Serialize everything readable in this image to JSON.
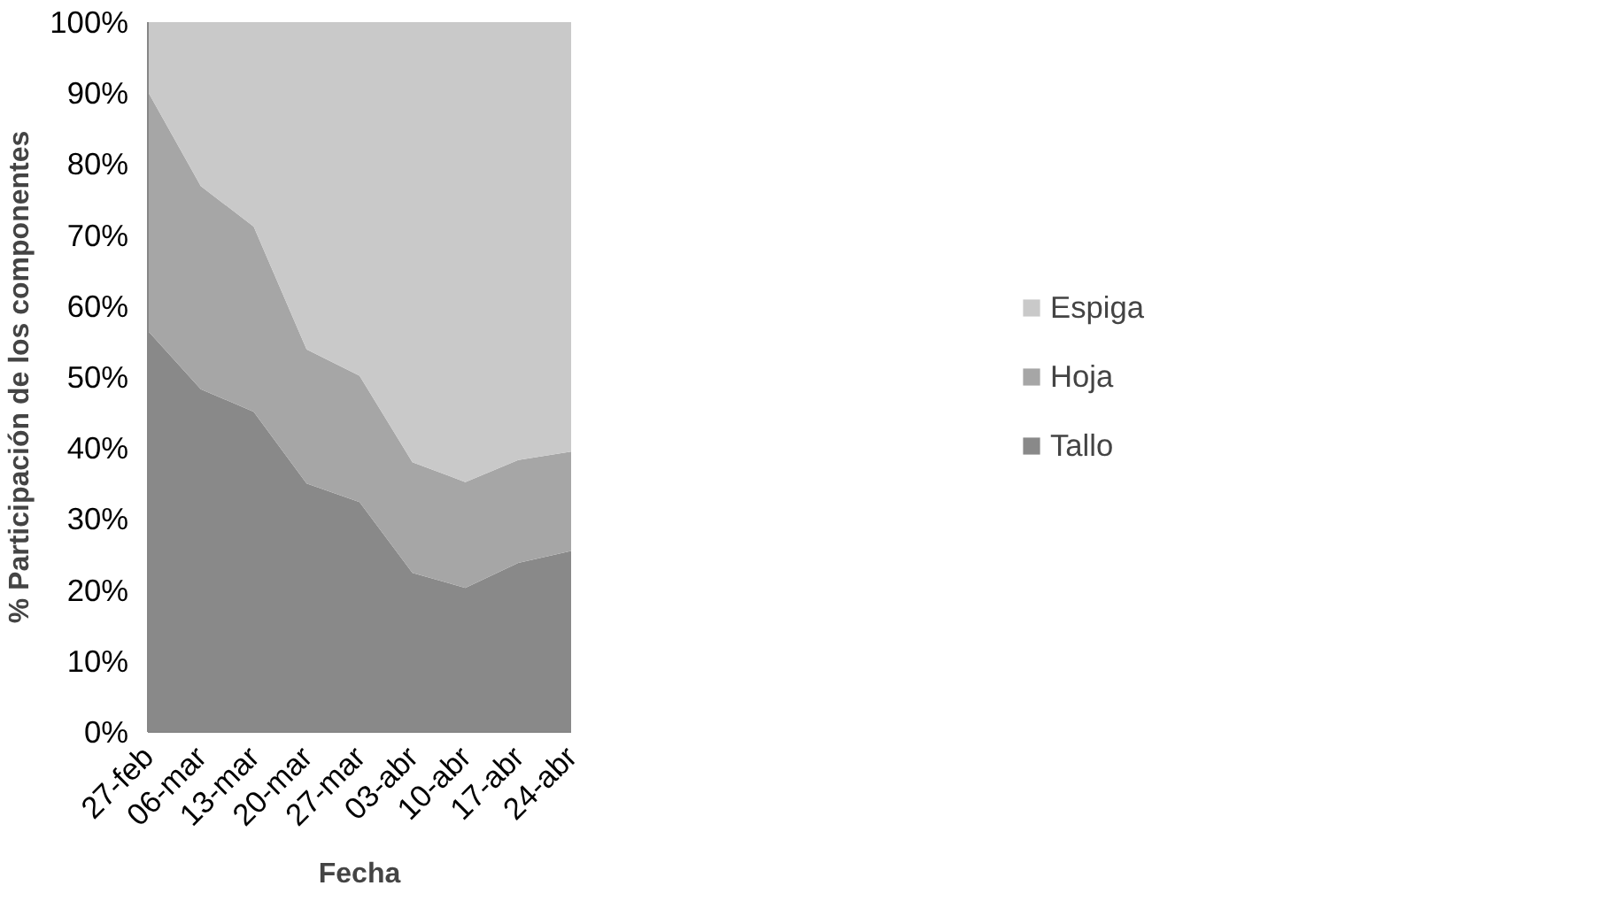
{
  "chart_data": {
    "type": "area",
    "stacked": true,
    "xlabel": "Fecha",
    "ylabel": "% Participación de los componentes",
    "categories": [
      "27-feb",
      "06-mar",
      "13-mar",
      "20-mar",
      "27-mar",
      "03-abr",
      "10-abr",
      "17-abr",
      "24-abr"
    ],
    "series": [
      {
        "name": "Tallo",
        "color": "#898989",
        "values": [
          56.5,
          48.3,
          45.1,
          35.0,
          32.4,
          22.4,
          20.3,
          23.8,
          25.5
        ]
      },
      {
        "name": "Hoja",
        "color": "#a6a6a6",
        "values": [
          33.7,
          28.6,
          26.1,
          18.9,
          17.8,
          15.6,
          14.9,
          14.5,
          14.0
        ]
      },
      {
        "name": "Espiga",
        "color": "#c9c9c9",
        "values": [
          9.8,
          23.1,
          28.8,
          46.1,
          49.8,
          62.0,
          64.8,
          61.7,
          60.5
        ]
      }
    ],
    "ylim": [
      0,
      100
    ],
    "yticks": [
      {
        "value": 0,
        "label": "0%"
      },
      {
        "value": 10,
        "label": "10%"
      },
      {
        "value": 20,
        "label": "20%"
      },
      {
        "value": 30,
        "label": "30%"
      },
      {
        "value": 40,
        "label": "40%"
      },
      {
        "value": 50,
        "label": "50%"
      },
      {
        "value": 60,
        "label": "60%"
      },
      {
        "value": 70,
        "label": "70%"
      },
      {
        "value": 80,
        "label": "80%"
      },
      {
        "value": 90,
        "label": "90%"
      },
      {
        "value": 100,
        "label": "100%"
      }
    ],
    "grid": false,
    "legend": "right"
  }
}
